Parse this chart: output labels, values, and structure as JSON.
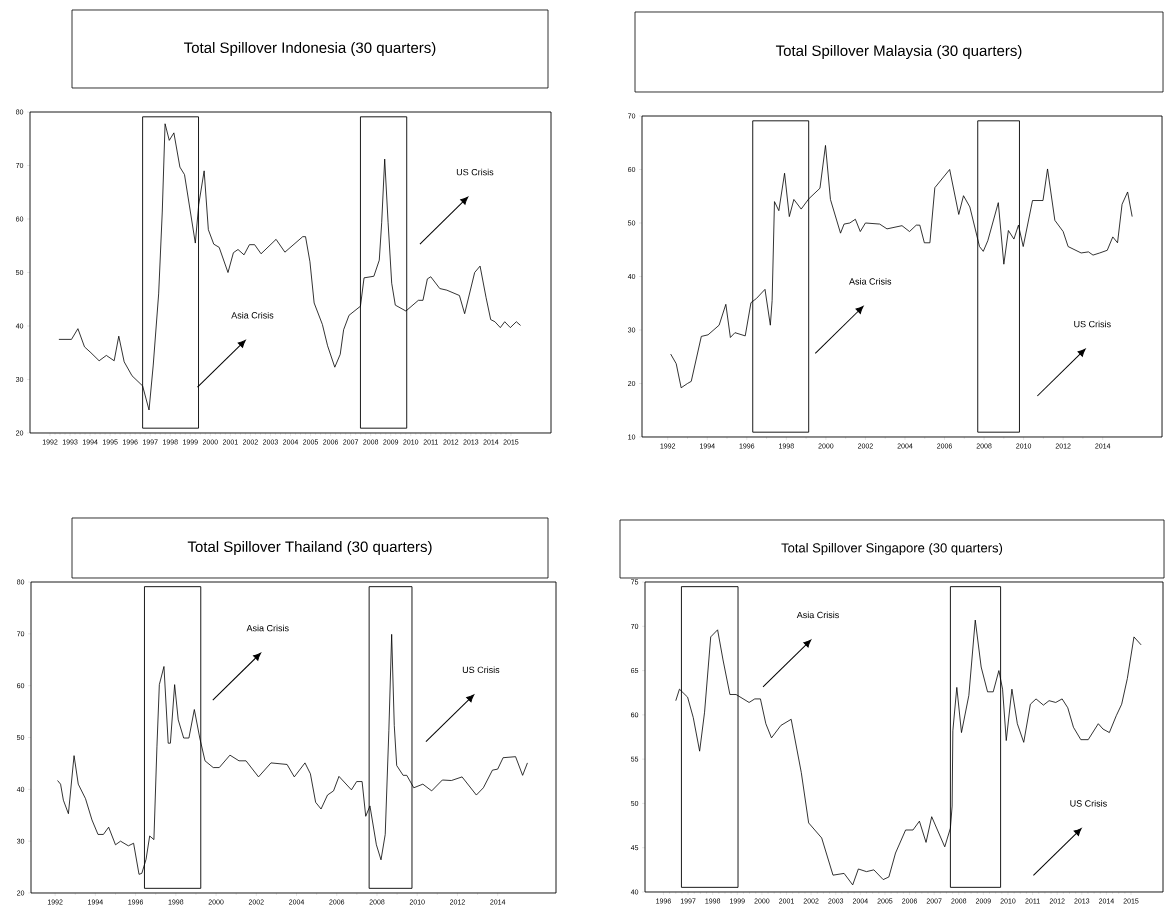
{
  "chart_data": [
    {
      "type": "line",
      "title": "Total Spillover Indonesia (30 quarters)",
      "color": "#000000",
      "x": [
        1992.44,
        1993.07,
        1993.39,
        1993.72,
        1994.04,
        1994.45,
        1994.81,
        1995.2,
        1995.43,
        1995.7,
        1996.09,
        1996.62,
        1996.94,
        1997.15,
        1997.42,
        1997.6,
        1997.74,
        1997.95,
        1998.18,
        1998.48,
        1998.71,
        1999.25,
        1999.42,
        1999.69,
        1999.9,
        2000.17,
        2000.44,
        2000.88,
        2001.15,
        2001.38,
        2001.68,
        2001.95,
        2002.21,
        2002.53,
        2003.28,
        2003.72,
        2004.61,
        2004.75,
        2004.97,
        2005.18,
        2005.59,
        2005.85,
        2006.21,
        2006.48,
        2006.65,
        2006.92,
        2007.49,
        2007.67,
        2008.16,
        2008.43,
        2008.55,
        2008.7,
        2008.87,
        2009.05,
        2009.23,
        2009.76,
        2010.38,
        2010.61,
        2010.83,
        2011.0,
        2011.45,
        2011.8,
        2012.43,
        2012.69,
        2013.19,
        2013.46,
        2013.76,
        2013.99,
        2014.2,
        2014.47,
        2014.69,
        2014.97,
        2015.27,
        2015.48
      ],
      "values": [
        37.5,
        37.5,
        39.5,
        36.1,
        35,
        33.5,
        34.5,
        33.5,
        38.1,
        33.3,
        30.7,
        28.8,
        24.3,
        32.7,
        46,
        61.3,
        77.8,
        74.7,
        76.1,
        69.7,
        68.3,
        55.5,
        62.7,
        69,
        58,
        55.3,
        54.7,
        50,
        53.7,
        54.3,
        53.3,
        55.2,
        55.2,
        53.5,
        56.2,
        53.8,
        56.7,
        56.7,
        52,
        44.3,
        40.3,
        36.3,
        32.3,
        34.7,
        39.3,
        42,
        43.7,
        49,
        49.3,
        52.3,
        59.3,
        71.2,
        59.3,
        48,
        43.9,
        42.8,
        44.8,
        44.8,
        48.8,
        49.2,
        47,
        46.7,
        45.7,
        42.3,
        50,
        51.2,
        45.3,
        41.2,
        40.8,
        39.7,
        40.8,
        39.7,
        40.8,
        40.1
      ],
      "xlim": [
        1991,
        2017
      ],
      "ylim": [
        20,
        80
      ],
      "xticks": [
        1992,
        1993,
        1994,
        1995,
        1996,
        1997,
        1998,
        1999,
        2000,
        2001,
        2002,
        2003,
        2004,
        2005,
        2006,
        2007,
        2008,
        2009,
        2010,
        2011,
        2012,
        2013,
        2014,
        2015
      ],
      "yticks": [
        20,
        30,
        40,
        50,
        60,
        70,
        80
      ],
      "bands": [
        {
          "axis": "x",
          "from": 1996.62,
          "to": 1999.41,
          "color": "#000000"
        },
        {
          "axis": "x",
          "from": 2007.49,
          "to": 2009.8,
          "color": "#000000"
        }
      ],
      "annotations": [
        "Asia Crisis",
        "US Crisis"
      ]
    },
    {
      "type": "line",
      "title": "Total Spillover Malaysia (30 quarters)",
      "color": "#000000",
      "x": [
        1992.15,
        1992.43,
        1992.68,
        1993.0,
        1993.19,
        1993.7,
        1994.04,
        1994.6,
        1994.94,
        1995.17,
        1995.4,
        1995.92,
        1996.21,
        1996.49,
        1996.92,
        1997.19,
        1997.28,
        1997.4,
        1997.62,
        1997.91,
        1998.15,
        1998.38,
        1998.75,
        1999.13,
        1999.7,
        1999.98,
        2000.23,
        2000.74,
        2000.92,
        2001.21,
        2001.49,
        2001.74,
        2002.0,
        2002.72,
        2003.09,
        2003.85,
        2004.23,
        2004.57,
        2004.75,
        2004.98,
        2005.26,
        2005.51,
        2006.26,
        2006.72,
        2006.96,
        2007.28,
        2007.77,
        2007.96,
        2008.19,
        2008.72,
        2009.0,
        2009.23,
        2009.51,
        2009.74,
        2009.98,
        2010.45,
        2010.98,
        2011.21,
        2011.58,
        2012.0,
        2012.25,
        2012.91,
        2013.28,
        2013.51,
        2013.85,
        2014.23,
        2014.51,
        2014.75,
        2014.98,
        2015.26,
        2015.49
      ],
      "values": [
        25.5,
        23.7,
        19.2,
        20,
        20.4,
        28.8,
        29.1,
        30.9,
        34.8,
        28.6,
        29.5,
        28.9,
        35.1,
        35.9,
        37.6,
        30.9,
        35.5,
        54,
        52.3,
        59.3,
        51.2,
        54.4,
        52.6,
        54.5,
        56.5,
        64.5,
        54.4,
        48.1,
        49.8,
        50,
        50.7,
        48.4,
        50,
        49.8,
        48.9,
        49.5,
        48.4,
        49.6,
        49.6,
        46.3,
        46.3,
        56.6,
        60,
        51.6,
        55.1,
        53,
        45.6,
        44.7,
        46.7,
        53.8,
        42.3,
        48.6,
        47,
        49.6,
        45.6,
        54.2,
        54.2,
        60.1,
        50.5,
        48.4,
        45.6,
        44.4,
        44.6,
        44,
        44.4,
        44.9,
        47.4,
        46.3,
        53.5,
        55.8,
        51.2
      ],
      "xlim": [
        1990.7,
        2017
      ],
      "ylim": [
        10,
        70
      ],
      "xticks": [
        1992,
        1994,
        1996,
        1998,
        2000,
        2002,
        2004,
        2006,
        2008,
        2010,
        2012,
        2014
      ],
      "yticks": [
        10,
        20,
        30,
        40,
        50,
        60,
        70
      ],
      "bands": [
        {
          "axis": "x",
          "from": 1996.3,
          "to": 1999.13,
          "color": "#000000"
        },
        {
          "axis": "x",
          "from": 2007.68,
          "to": 2009.79,
          "color": "#000000"
        }
      ],
      "annotations": [
        "Asia Crisis",
        "US Crisis"
      ]
    },
    {
      "type": "line",
      "title": "Total Spillover Thailand (30 quarters)",
      "color": "#000000",
      "x": [
        1992.12,
        1992.27,
        1992.41,
        1992.66,
        1992.94,
        1993.15,
        1993.51,
        1993.83,
        1994.13,
        1994.4,
        1994.66,
        1995.0,
        1995.25,
        1995.64,
        1995.9,
        1996.17,
        1996.31,
        1996.52,
        1996.7,
        1996.91,
        1997.06,
        1997.18,
        1997.41,
        1997.62,
        1997.73,
        1997.94,
        1998.12,
        1998.39,
        1998.65,
        1998.92,
        1999.19,
        1999.45,
        1999.86,
        2000.16,
        2000.69,
        2001.14,
        2001.49,
        2002.11,
        2002.73,
        2003.53,
        2003.89,
        2004.42,
        2004.69,
        2004.95,
        2005.22,
        2005.54,
        2005.84,
        2006.11,
        2006.73,
        2006.99,
        2007.26,
        2007.44,
        2007.65,
        2007.97,
        2008.2,
        2008.41,
        2008.59,
        2008.73,
        2008.86,
        2008.98,
        2009.3,
        2009.48,
        2009.83,
        2010.28,
        2010.72,
        2011.25,
        2011.7,
        2012.23,
        2012.94,
        2013.29,
        2013.74,
        2014.0,
        2014.27,
        2014.89,
        2015.24,
        2015.48
      ],
      "values": [
        41.7,
        41,
        37.9,
        35.3,
        46.5,
        41,
        38.2,
        34.1,
        31.3,
        31.3,
        32.7,
        29.3,
        30,
        29.1,
        29.6,
        23.6,
        23.8,
        26.5,
        31,
        30.3,
        48.2,
        60.2,
        63.7,
        48.9,
        48.9,
        60.2,
        53.4,
        49.9,
        49.9,
        55.4,
        49.9,
        45.5,
        44.2,
        44.2,
        46.6,
        45.5,
        45.5,
        42.4,
        45.1,
        44.8,
        42.4,
        45.1,
        43,
        37.5,
        36.2,
        38.9,
        39.7,
        42.5,
        39.9,
        41.5,
        41.5,
        34.8,
        36.8,
        29.3,
        26.4,
        31.3,
        51.3,
        69.9,
        52.3,
        44.6,
        42.7,
        42.7,
        40.3,
        41,
        39.7,
        41.8,
        41.7,
        42.4,
        38.9,
        40.3,
        43.7,
        43.9,
        46.1,
        46.3,
        42.7,
        45.1
      ],
      "xlim": [
        1990.8,
        2016.9
      ],
      "ylim": [
        20,
        80
      ],
      "xticks": [
        1992,
        1994,
        1996,
        1998,
        2000,
        2002,
        2004,
        2006,
        2008,
        2010,
        2012,
        2014
      ],
      "yticks": [
        20,
        30,
        40,
        50,
        60,
        70,
        80
      ],
      "bands": [
        {
          "axis": "x",
          "from": 1996.44,
          "to": 1999.24,
          "color": "#000000"
        },
        {
          "axis": "x",
          "from": 2007.61,
          "to": 2009.74,
          "color": "#000000"
        }
      ],
      "annotations": [
        "Asia Crisis",
        "US Crisis"
      ]
    },
    {
      "type": "line",
      "title": "Total Spillover Singapore (30 quarters)",
      "color": "#000000",
      "x": [
        1996.5,
        1996.65,
        1996.98,
        1997.21,
        1997.47,
        1997.67,
        1997.92,
        1998.2,
        1998.42,
        1998.7,
        1998.95,
        1999.48,
        1999.71,
        1999.94,
        2000.16,
        2000.39,
        2000.77,
        2001.19,
        2001.6,
        2001.9,
        2002.43,
        2002.89,
        2003.34,
        2003.69,
        2003.92,
        2004.25,
        2004.55,
        2004.93,
        2005.16,
        2005.43,
        2005.84,
        2006.14,
        2006.4,
        2006.67,
        2006.9,
        2007.43,
        2007.66,
        2007.73,
        2007.76,
        2007.92,
        2008.11,
        2008.41,
        2008.67,
        2008.91,
        2009.17,
        2009.4,
        2009.63,
        2009.78,
        2009.93,
        2010.16,
        2010.38,
        2010.64,
        2010.91,
        2011.14,
        2011.44,
        2011.67,
        2011.94,
        2012.2,
        2012.43,
        2012.66,
        2012.96,
        2013.26,
        2013.67,
        2013.86,
        2014.12,
        2014.4,
        2014.62,
        2014.85,
        2015.12,
        2015.41
      ],
      "values": [
        61.6,
        62.9,
        62,
        59.7,
        55.9,
        60.3,
        68.8,
        69.6,
        66.2,
        62.3,
        62.3,
        61.4,
        61.8,
        61.8,
        59,
        57.4,
        58.8,
        59.5,
        53.5,
        47.8,
        46.1,
        41.9,
        42.1,
        40.8,
        42.6,
        42.3,
        42.5,
        41.4,
        41.7,
        44.4,
        47,
        47,
        48,
        45.6,
        48.5,
        45.1,
        47.2,
        49.7,
        58.2,
        63.1,
        58,
        62.2,
        70.7,
        65.4,
        62.6,
        62.6,
        65,
        62.9,
        57.1,
        62.9,
        59,
        56.9,
        61.2,
        61.8,
        61.1,
        61.6,
        61.4,
        61.8,
        60.8,
        58.6,
        57.2,
        57.2,
        59,
        58.4,
        58,
        59.9,
        61.2,
        64.1,
        68.8,
        67.9
      ],
      "xlim": [
        1995.25,
        2016.3
      ],
      "ylim": [
        40,
        75
      ],
      "xticks": [
        1996,
        1997,
        1998,
        1999,
        2000,
        2001,
        2002,
        2003,
        2004,
        2005,
        2006,
        2007,
        2008,
        2009,
        2010,
        2011,
        2012,
        2013,
        2014,
        2015
      ],
      "yticks": [
        40,
        45,
        50,
        55,
        60,
        65,
        70,
        75
      ],
      "bands": [
        {
          "axis": "x",
          "from": 1996.73,
          "to": 1999.03,
          "color": "#000000"
        },
        {
          "axis": "x",
          "from": 2007.66,
          "to": 2009.7,
          "color": "#000000"
        }
      ],
      "annotations": [
        "Asia Crisis",
        "US Crisis"
      ]
    }
  ]
}
